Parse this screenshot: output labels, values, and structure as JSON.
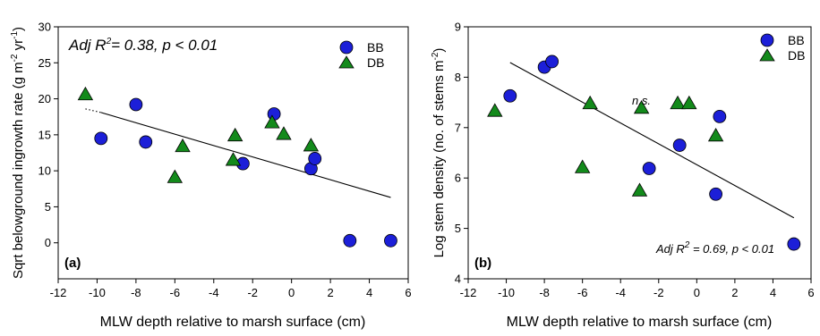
{
  "chart_data": [
    {
      "type": "scatter",
      "panel_label": "(a)",
      "xlabel": "MLW depth relative to marsh surface (cm)",
      "ylabel": {
        "main": "Sqrt belowground  ingrowth rate (g m",
        "exp1": "-2",
        "mid": " yr",
        "exp2": "-1",
        "end": ")"
      },
      "xlim": [
        -12,
        6
      ],
      "ylim": [
        -5,
        30
      ],
      "xticks": [
        "-12",
        "-10",
        "-8",
        "-6",
        "-4",
        "-2",
        "0",
        "2",
        "4",
        "6"
      ],
      "yticks": [
        "0",
        "5",
        "10",
        "15",
        "20",
        "25",
        "30"
      ],
      "legend_position": "top-right",
      "annotation": {
        "text1": "Adj R",
        "sup": "2",
        "text2": "= 0.38, p < 0.01"
      },
      "series": [
        {
          "name": "BB",
          "marker": "circle",
          "color": "#1c1fd8",
          "points": [
            [
              -9.8,
              14.5
            ],
            [
              -8.0,
              19.2
            ],
            [
              -7.5,
              14.0
            ],
            [
              -2.5,
              11.0
            ],
            [
              -0.9,
              17.9
            ],
            [
              1.0,
              10.3
            ],
            [
              1.2,
              11.7
            ],
            [
              3.0,
              0.3
            ],
            [
              5.1,
              0.3
            ]
          ]
        },
        {
          "name": "DB",
          "marker": "triangle",
          "color": "#138a1b",
          "points": [
            [
              -10.6,
              20.6
            ],
            [
              -6.0,
              9.1
            ],
            [
              -5.6,
              13.4
            ],
            [
              -3.0,
              11.5
            ],
            [
              -2.9,
              14.9
            ],
            [
              -1.0,
              16.7
            ],
            [
              -0.4,
              15.1
            ],
            [
              1.0,
              13.5
            ]
          ]
        }
      ],
      "fit_line": {
        "dotted": [
          [
            -10.6,
            18.6
          ],
          [
            -9.8,
            18.1
          ]
        ],
        "solid": [
          [
            -9.8,
            18.1
          ],
          [
            5.1,
            6.3
          ]
        ]
      }
    },
    {
      "type": "scatter",
      "panel_label": "(b)",
      "xlabel": "MLW depth relative to marsh surface (cm)",
      "ylabel": {
        "main": "Log stem density (no. of stems m",
        "exp1": "-2",
        "end": ")"
      },
      "xlim": [
        -12,
        6
      ],
      "ylim": [
        4,
        9
      ],
      "xticks": [
        "-12",
        "-10",
        "-8",
        "-6",
        "-4",
        "-2",
        "0",
        "2",
        "4",
        "6"
      ],
      "yticks": [
        "4",
        "5",
        "6",
        "7",
        "8",
        "9"
      ],
      "legend_position": "top-right",
      "annotation": {
        "text1": "Adj R",
        "sup": "2",
        "text2": " = 0.69, p < 0.01"
      },
      "ns_label": "n.s.",
      "series": [
        {
          "name": "BB",
          "marker": "circle",
          "color": "#1c1fd8",
          "points": [
            [
              -9.8,
              7.63
            ],
            [
              -8.0,
              8.2
            ],
            [
              -7.6,
              8.31
            ],
            [
              -2.5,
              6.19
            ],
            [
              -0.9,
              6.65
            ],
            [
              1.0,
              5.68
            ],
            [
              1.2,
              7.22
            ],
            [
              5.1,
              4.69
            ]
          ]
        },
        {
          "name": "DB",
          "marker": "triangle",
          "color": "#138a1b",
          "points": [
            [
              -10.6,
              7.33
            ],
            [
              -6.0,
              6.21
            ],
            [
              -5.6,
              7.48
            ],
            [
              -3.0,
              5.75
            ],
            [
              -2.9,
              7.39
            ],
            [
              -1.0,
              7.48
            ],
            [
              -0.4,
              7.48
            ],
            [
              1.0,
              6.84
            ]
          ]
        }
      ],
      "fit_line": {
        "solid": [
          [
            -9.8,
            8.29
          ],
          [
            5.1,
            5.21
          ]
        ]
      }
    }
  ]
}
